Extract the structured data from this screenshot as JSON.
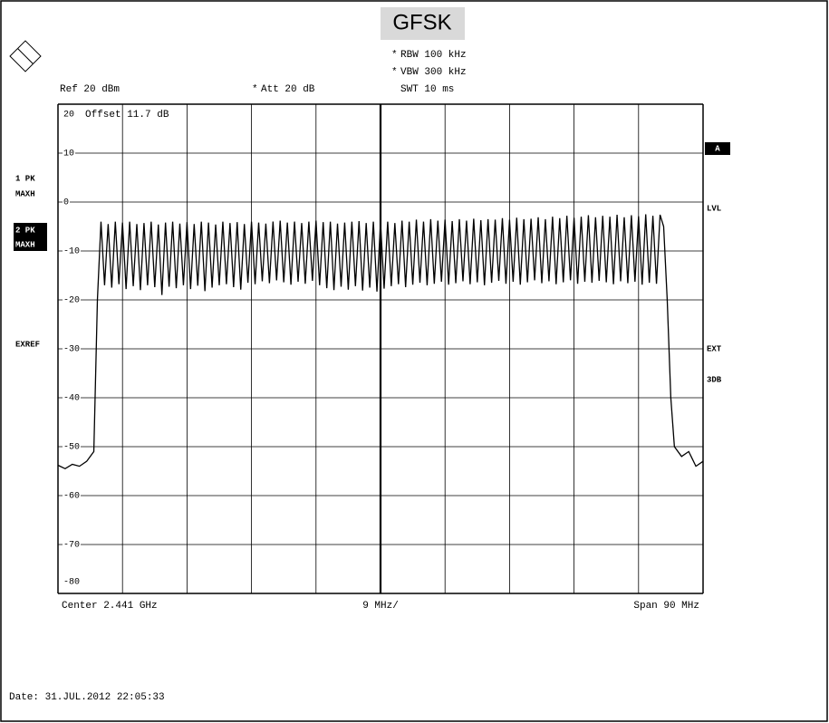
{
  "screen": {
    "rbw": {
      "flag": "*",
      "text": "RBW  100 kHz"
    },
    "vbw": {
      "flag": "*",
      "text": "VBW  300 kHz"
    },
    "swt": "SWT  10 ms",
    "ref": "Ref  20 dBm",
    "att": {
      "flag": "*",
      "text": "Att  20 dB"
    },
    "offset": "Offset  11.7 dB",
    "left_labels": [
      "1 PK",
      "MAXH",
      "2 PK",
      "MAXH",
      "EXREF"
    ],
    "right_labels": [
      "A",
      "LVL",
      "EXT",
      "3DB"
    ],
    "center": "Center  2.441 GHz",
    "div": "9 MHz/",
    "span": "Span  90 MHz",
    "date": "Date: 31.JUL.2012  22:05:33"
  },
  "chart_data": {
    "type": "line",
    "title": "GFSK",
    "xlim": [
      2396,
      2486
    ],
    "ylim": [
      -80,
      20
    ],
    "yticks": [
      20,
      10,
      0,
      -10,
      -20,
      -30,
      -40,
      -50,
      -60,
      -70,
      -80
    ],
    "grid": true,
    "series": [
      {
        "color": "#000000",
        "x": [
          2396,
          2397,
          2398,
          2399,
          2400,
          2401,
          2401.5,
          2402,
          2402.5,
          2403,
          2403.5,
          2404,
          2404.5,
          2405,
          2405.5,
          2406,
          2406.5,
          2407,
          2407.5,
          2408,
          2408.5,
          2409,
          2409.5,
          2410,
          2410.5,
          2411,
          2411.5,
          2412,
          2412.5,
          2413,
          2413.5,
          2414,
          2414.5,
          2415,
          2415.5,
          2416,
          2416.5,
          2417,
          2417.5,
          2418,
          2418.5,
          2419,
          2419.5,
          2420,
          2420.5,
          2421,
          2421.5,
          2422,
          2422.5,
          2423,
          2423.5,
          2424,
          2424.5,
          2425,
          2425.5,
          2426,
          2426.5,
          2427,
          2427.5,
          2428,
          2428.5,
          2429,
          2429.5,
          2430,
          2430.5,
          2431,
          2431.5,
          2432,
          2432.5,
          2433,
          2433.5,
          2434,
          2434.5,
          2435,
          2435.5,
          2436,
          2436.5,
          2437,
          2437.5,
          2438,
          2438.5,
          2439,
          2439.5,
          2440,
          2440.5,
          2441,
          2441.5,
          2442,
          2442.5,
          2443,
          2443.5,
          2444,
          2444.5,
          2445,
          2445.5,
          2446,
          2446.5,
          2447,
          2447.5,
          2448,
          2448.5,
          2449,
          2449.5,
          2450,
          2450.5,
          2451,
          2451.5,
          2452,
          2452.5,
          2453,
          2453.5,
          2454,
          2454.5,
          2455,
          2455.5,
          2456,
          2456.5,
          2457,
          2457.5,
          2458,
          2458.5,
          2459,
          2459.5,
          2460,
          2460.5,
          2461,
          2461.5,
          2462,
          2462.5,
          2463,
          2463.5,
          2464,
          2464.5,
          2465,
          2465.5,
          2466,
          2466.5,
          2467,
          2467.5,
          2468,
          2468.5,
          2469,
          2469.5,
          2470,
          2470.5,
          2471,
          2471.5,
          2472,
          2472.5,
          2473,
          2473.5,
          2474,
          2474.5,
          2475,
          2475.5,
          2476,
          2476.5,
          2477,
          2477.5,
          2478,
          2478.5,
          2479,
          2479.5,
          2480,
          2480.5,
          2481,
          2481.5,
          2482,
          2483,
          2484,
          2485,
          2486
        ],
        "values": [
          -53.8,
          -54.5,
          -53.6,
          -54,
          -53,
          -51,
          -20,
          -4,
          -17,
          -4.5,
          -17.5,
          -4,
          -16.8,
          -4.2,
          -17.8,
          -4,
          -17.2,
          -4.5,
          -18,
          -4.3,
          -17,
          -4,
          -17.4,
          -4.6,
          -19,
          -4.2,
          -17.3,
          -4,
          -17.6,
          -4.4,
          -17,
          -4.1,
          -17.8,
          -4.5,
          -17.1,
          -4,
          -18.2,
          -4.2,
          -17.5,
          -4.6,
          -17,
          -4,
          -16.8,
          -4.3,
          -17.4,
          -4.1,
          -17.9,
          -4.5,
          -16.5,
          -4,
          -16.8,
          -4.2,
          -16.2,
          -4.4,
          -16.6,
          -4,
          -16,
          -3.8,
          -16.4,
          -4.2,
          -16.9,
          -4,
          -16.3,
          -4.3,
          -16.7,
          -4,
          -16.1,
          -3.8,
          -17,
          -4.1,
          -17.6,
          -4,
          -18,
          -4.4,
          -17.3,
          -4.2,
          -17.9,
          -4,
          -17.2,
          -3.9,
          -18.1,
          -4.3,
          -17.5,
          -4,
          -18.3,
          -4.2,
          -17.7,
          -4,
          -17.2,
          -4.3,
          -16.8,
          -3.8,
          -17.4,
          -4,
          -16.9,
          -3.6,
          -16.5,
          -4,
          -17,
          -3.5,
          -16.7,
          -3.8,
          -16.3,
          -3.6,
          -16.9,
          -3.9,
          -16.6,
          -3.5,
          -16.2,
          -3.8,
          -16.8,
          -3.4,
          -16.4,
          -3.7,
          -17,
          -3.5,
          -16.5,
          -3.6,
          -16.1,
          -3.3,
          -16.7,
          -3.6,
          -16.3,
          -3.2,
          -16.9,
          -3.5,
          -16.4,
          -3.4,
          -16,
          -3.1,
          -16.6,
          -3.5,
          -16.2,
          -3,
          -16.8,
          -3.3,
          -16.4,
          -2.8,
          -16,
          -3.2,
          -16.7,
          -3,
          -16.3,
          -2.7,
          -16.5,
          -3.1,
          -16.1,
          -2.8,
          -16.4,
          -3,
          -16.8,
          -2.6,
          -16.2,
          -3.1,
          -16.6,
          -2.7,
          -16.3,
          -2.9,
          -16.9,
          -2.5,
          -16.5,
          -2.8,
          -16.7,
          -2.6,
          -5,
          -20,
          -40,
          -50,
          -52,
          -51,
          -54,
          -53
        ]
      }
    ]
  }
}
